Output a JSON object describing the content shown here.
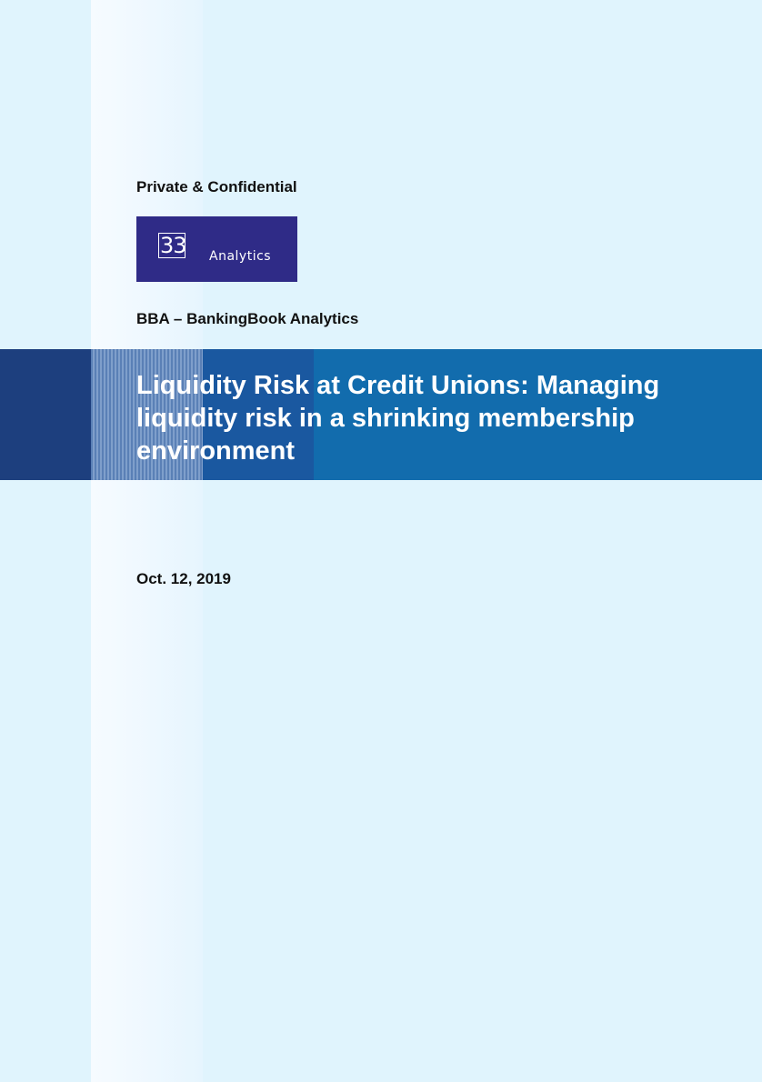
{
  "header": {
    "confidentiality": "Private & Confidential"
  },
  "logo": {
    "mark": "33",
    "word": "Analytics"
  },
  "subtitle": "BBA – BankingBook Analytics",
  "title": "Liquidity Risk at Credit Unions: Managing liquidity risk in a shrinking membership environment",
  "date": "Oct. 12, 2019",
  "colors": {
    "background": "#e0f4fd",
    "band": "#126cad",
    "band_dark": "#1d3f7e",
    "logo_bg": "#2f2b87"
  }
}
